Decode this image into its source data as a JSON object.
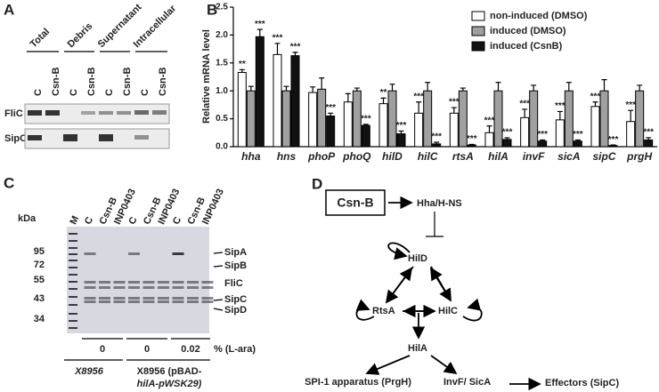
{
  "panel_a": {
    "label": "A",
    "groups": [
      "Total",
      "Debris",
      "Supernatant",
      "Intracellular"
    ],
    "lanes": [
      "C",
      "Csn-B",
      "C",
      "Csn-B",
      "C",
      "Csn-B",
      "C",
      "Csn-B"
    ],
    "rows": [
      "FliC",
      "SipC"
    ]
  },
  "chart_data": {
    "type": "bar",
    "label": "B",
    "ylabel": "Relative mRNA level",
    "categories": [
      "hha",
      "hns",
      "phoP",
      "phoQ",
      "hilD",
      "hilC",
      "rtsA",
      "hilA",
      "invF",
      "sicA",
      "sipC",
      "prgH"
    ],
    "ylim": [
      0,
      2.5
    ],
    "yticks": [
      {
        "value": 0,
        "label": "0.0"
      },
      {
        "value": 0.5,
        "label": "0.5"
      },
      {
        "value": 1,
        "label": "1.0"
      },
      {
        "value": 1.5,
        "label": "1.5"
      },
      {
        "value": 2,
        "label": "2.0"
      },
      {
        "value": 2.5,
        "label": "2.5"
      }
    ],
    "legend": "top-right",
    "series": [
      {
        "name": "non-induced (DMSO)",
        "color": "#ffffff",
        "values": [
          1.33,
          1.65,
          0.97,
          0.8,
          0.77,
          0.6,
          0.6,
          0.25,
          0.52,
          0.48,
          0.72,
          0.45
        ],
        "errors": [
          0.05,
          0.2,
          0.1,
          0.15,
          0.1,
          0.2,
          0.1,
          0.12,
          0.15,
          0.15,
          0.08,
          0.2
        ],
        "significance": [
          "**",
          "***",
          null,
          null,
          "**",
          "***",
          "***",
          "***",
          "***",
          "***",
          "***",
          "***"
        ]
      },
      {
        "name": "induced (DMSO)",
        "color": "#a0a0a0",
        "values": [
          1.0,
          1.0,
          1.03,
          1.0,
          1.0,
          1.0,
          1.0,
          1.0,
          1.0,
          1.0,
          1.0,
          1.0
        ],
        "errors": [
          0.08,
          0.08,
          0.2,
          0.05,
          0.12,
          0.15,
          0.05,
          0.15,
          0.1,
          0.15,
          0.2,
          0.1
        ],
        "significance": [
          null,
          null,
          null,
          null,
          null,
          null,
          null,
          null,
          null,
          null,
          null,
          null
        ]
      },
      {
        "name": "induced (CsnB)",
        "color": "#111111",
        "values": [
          1.97,
          1.63,
          0.55,
          0.38,
          0.23,
          0.05,
          0.03,
          0.13,
          0.1,
          0.1,
          0.02,
          0.12
        ],
        "errors": [
          0.13,
          0.06,
          0.05,
          0.02,
          0.05,
          0.03,
          0.01,
          0.03,
          0.02,
          0.02,
          0.01,
          0.04
        ],
        "significance": [
          "***",
          "***",
          "***",
          "***",
          "***",
          "***",
          "***",
          "***",
          "***",
          "***",
          "***",
          "***"
        ]
      }
    ]
  },
  "panel_c": {
    "label": "C",
    "lanes": [
      "M",
      "C",
      "Csn-B",
      "INP0403",
      "C",
      "Csn-B",
      "INP0403",
      "C",
      "Csn-B",
      "INP0403"
    ],
    "unit": "kDa",
    "markers": [
      "95",
      "72",
      "55",
      "43",
      "34"
    ],
    "proteins": [
      "SipA",
      "SipB",
      "FliC",
      "SipC",
      "SipD"
    ],
    "arabinose": [
      "0",
      "0",
      "0.02"
    ],
    "arabinose_label": "% (L-ara)",
    "strains": [
      "X8956",
      "X8956 (pBAD-",
      "hilA-pWSK29)"
    ]
  },
  "panel_d": {
    "label": "D",
    "nodes": [
      "Csn-B",
      "Hha/H-NS",
      "HilD",
      "RtsA",
      "HilC",
      "HilA",
      "SPI-1 apparatus (PrgH)",
      "InvF/ SicA",
      "Effectors (SipC)"
    ]
  }
}
